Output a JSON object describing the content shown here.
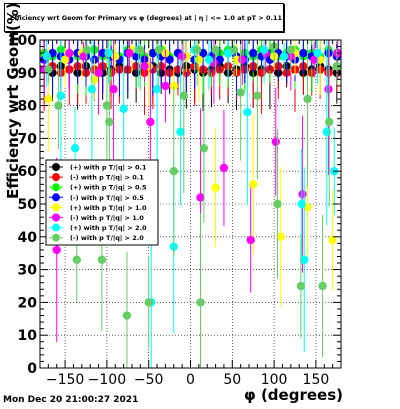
{
  "title": "Efficiency wrt Geom for Primary vs φ (degrees) at | η | <= 1.0 at pT > 0.11",
  "datestamp": "Mon Dec 20 21:00:27 2021",
  "chart_data": {
    "type": "scatter",
    "xlabel": "φ (degrees)",
    "ylabel": "Efficiency wrt Geom(%)",
    "xlim": [
      -180,
      180
    ],
    "ylim": [
      0,
      100
    ],
    "xticks": [
      -150,
      -100,
      -50,
      0,
      50,
      100,
      150
    ],
    "yticks": [
      0,
      10,
      20,
      30,
      40,
      50,
      60,
      70,
      80,
      90,
      100
    ],
    "grid": true,
    "legend_position": "left-middle",
    "series": [
      {
        "name": "(+) with p T/|q| > 0.1",
        "color": "#000000",
        "points": [
          [
            -175,
            91
          ],
          [
            -165,
            90
          ],
          [
            -155,
            92
          ],
          [
            -145,
            91
          ],
          [
            -135,
            90
          ],
          [
            -125,
            92
          ],
          [
            -115,
            91
          ],
          [
            -105,
            90
          ],
          [
            -95,
            91
          ],
          [
            -85,
            92
          ],
          [
            -75,
            91
          ],
          [
            -65,
            90
          ],
          [
            -55,
            91
          ],
          [
            -45,
            92
          ],
          [
            -35,
            90
          ],
          [
            -25,
            91
          ],
          [
            -15,
            90
          ],
          [
            -5,
            92
          ],
          [
            5,
            91
          ],
          [
            15,
            90
          ],
          [
            25,
            91
          ],
          [
            35,
            92
          ],
          [
            45,
            90
          ],
          [
            55,
            91
          ],
          [
            65,
            92
          ],
          [
            75,
            90
          ],
          [
            85,
            91
          ],
          [
            95,
            91
          ],
          [
            105,
            90
          ],
          [
            115,
            92
          ],
          [
            125,
            91
          ],
          [
            135,
            90
          ],
          [
            145,
            91
          ],
          [
            155,
            92
          ],
          [
            165,
            91
          ],
          [
            175,
            90
          ]
        ]
      },
      {
        "name": "(-) with p T/|q| > 0.1",
        "color": "#ff0000",
        "points": [
          [
            -175,
            91
          ],
          [
            -165,
            92
          ],
          [
            -155,
            90
          ],
          [
            -145,
            91
          ],
          [
            -135,
            92
          ],
          [
            -125,
            90
          ],
          [
            -115,
            91
          ],
          [
            -105,
            92
          ],
          [
            -95,
            90
          ],
          [
            -85,
            91
          ],
          [
            -75,
            91
          ],
          [
            -65,
            92
          ],
          [
            -55,
            90
          ],
          [
            -45,
            91
          ],
          [
            -35,
            92
          ],
          [
            -25,
            90
          ],
          [
            -15,
            91
          ],
          [
            -5,
            90
          ],
          [
            5,
            92
          ],
          [
            15,
            91
          ],
          [
            25,
            90
          ],
          [
            35,
            91
          ],
          [
            45,
            92
          ],
          [
            55,
            90
          ],
          [
            65,
            91
          ],
          [
            75,
            92
          ],
          [
            85,
            90
          ],
          [
            95,
            91
          ],
          [
            105,
            92
          ],
          [
            115,
            90
          ],
          [
            125,
            91
          ],
          [
            135,
            92
          ],
          [
            145,
            90
          ],
          [
            155,
            91
          ],
          [
            165,
            90
          ],
          [
            175,
            92
          ]
        ]
      },
      {
        "name": "(+) with p T/|q| > 0.5",
        "color": "#00ff00",
        "points": [
          [
            -175,
            96
          ],
          [
            -165,
            95
          ],
          [
            -155,
            97
          ],
          [
            -145,
            96
          ],
          [
            -135,
            95
          ],
          [
            -125,
            96
          ],
          [
            -115,
            97
          ],
          [
            -105,
            95
          ],
          [
            -95,
            96
          ],
          [
            -85,
            95
          ],
          [
            -75,
            97
          ],
          [
            -65,
            96
          ],
          [
            -55,
            95
          ],
          [
            -45,
            96
          ],
          [
            -35,
            97
          ],
          [
            -25,
            95
          ],
          [
            -15,
            96
          ],
          [
            -5,
            95
          ],
          [
            5,
            97
          ],
          [
            15,
            96
          ],
          [
            25,
            95
          ],
          [
            35,
            96
          ],
          [
            45,
            97
          ],
          [
            55,
            95
          ],
          [
            65,
            96
          ],
          [
            75,
            95
          ],
          [
            85,
            97
          ],
          [
            95,
            96
          ],
          [
            105,
            95
          ],
          [
            115,
            96
          ],
          [
            125,
            97
          ],
          [
            135,
            95
          ],
          [
            145,
            96
          ],
          [
            155,
            95
          ],
          [
            165,
            97
          ],
          [
            175,
            96
          ]
        ]
      },
      {
        "name": "(-) with p T/|q| > 0.5",
        "color": "#0000ff",
        "points": [
          [
            -175,
            94
          ],
          [
            -165,
            96
          ],
          [
            -155,
            95
          ],
          [
            -145,
            94
          ],
          [
            -135,
            96
          ],
          [
            -125,
            95
          ],
          [
            -115,
            94
          ],
          [
            -105,
            96
          ],
          [
            -95,
            95
          ],
          [
            -85,
            94
          ],
          [
            -75,
            96
          ],
          [
            -65,
            95
          ],
          [
            -55,
            94
          ],
          [
            -45,
            96
          ],
          [
            -35,
            95
          ],
          [
            -25,
            94
          ],
          [
            -15,
            96
          ],
          [
            -5,
            95
          ],
          [
            5,
            94
          ],
          [
            15,
            96
          ],
          [
            25,
            95
          ],
          [
            35,
            94
          ],
          [
            45,
            96
          ],
          [
            55,
            95
          ],
          [
            65,
            94
          ],
          [
            75,
            96
          ],
          [
            85,
            95
          ],
          [
            95,
            94
          ],
          [
            105,
            96
          ],
          [
            115,
            95
          ],
          [
            125,
            94
          ],
          [
            135,
            96
          ],
          [
            145,
            95
          ],
          [
            155,
            94
          ],
          [
            165,
            96
          ],
          [
            175,
            95
          ]
        ]
      },
      {
        "name": "(+) with p T/|q| > 1.0",
        "color": "#ffff00",
        "points": [
          [
            -170,
            82
          ],
          [
            -150,
            94
          ],
          [
            -130,
            96
          ],
          [
            -115,
            88
          ],
          [
            -90,
            95
          ],
          [
            -70,
            97
          ],
          [
            -50,
            92
          ],
          [
            -30,
            96
          ],
          [
            -20,
            86
          ],
          [
            -5,
            95
          ],
          [
            10,
            94
          ],
          [
            30,
            55
          ],
          [
            55,
            94
          ],
          [
            75,
            56
          ],
          [
            100,
            95
          ],
          [
            108,
            40
          ],
          [
            125,
            96
          ],
          [
            140,
            49
          ],
          [
            155,
            94
          ],
          [
            170,
            39
          ]
        ]
      },
      {
        "name": "(-) with p T/|q| > 1.0",
        "color": "#ff00ff",
        "points": [
          [
            -175,
            91
          ],
          [
            -160,
            36
          ],
          [
            -145,
            96
          ],
          [
            -128,
            95
          ],
          [
            -110,
            90
          ],
          [
            -92,
            85
          ],
          [
            -73,
            96
          ],
          [
            -55,
            92
          ],
          [
            -48,
            75
          ],
          [
            -30,
            86
          ],
          [
            -10,
            95
          ],
          [
            12,
            52
          ],
          [
            28,
            93
          ],
          [
            40,
            61
          ],
          [
            62,
            94
          ],
          [
            72,
            39
          ],
          [
            90,
            96
          ],
          [
            102,
            69
          ],
          [
            120,
            95
          ],
          [
            134,
            53
          ],
          [
            148,
            94
          ],
          [
            165,
            85
          ],
          [
            176,
            96
          ]
        ]
      },
      {
        "name": "(+) with p T/|q| > 2.0",
        "color": "#00ffff",
        "points": [
          [
            -172,
            95
          ],
          [
            -155,
            83
          ],
          [
            -138,
            67
          ],
          [
            -118,
            85
          ],
          [
            -98,
            96
          ],
          [
            -80,
            79
          ],
          [
            -62,
            97
          ],
          [
            -47,
            20
          ],
          [
            -40,
            85
          ],
          [
            -20,
            37
          ],
          [
            -12,
            72
          ],
          [
            5,
            97
          ],
          [
            22,
            94
          ],
          [
            45,
            96
          ],
          [
            68,
            78
          ],
          [
            88,
            97
          ],
          [
            112,
            95
          ],
          [
            133,
            50
          ],
          [
            136,
            33
          ],
          [
            152,
            96
          ],
          [
            163,
            72
          ],
          [
            172,
            60
          ]
        ]
      },
      {
        "name": "(-) with p T/|q| > 2.0",
        "color": "#66cc66",
        "points": [
          [
            -170,
            91
          ],
          [
            -158,
            80
          ],
          [
            -136,
            33
          ],
          [
            -124,
            97
          ],
          [
            -106,
            33
          ],
          [
            -100,
            80
          ],
          [
            -97,
            75
          ],
          [
            -76,
            16
          ],
          [
            -60,
            97
          ],
          [
            -50,
            20
          ],
          [
            -38,
            97
          ],
          [
            -20,
            60
          ],
          [
            -8,
            83
          ],
          [
            8,
            97
          ],
          [
            12,
            20
          ],
          [
            16,
            67
          ],
          [
            30,
            97
          ],
          [
            52,
            97
          ],
          [
            60,
            84
          ],
          [
            80,
            83
          ],
          [
            100,
            98
          ],
          [
            104,
            50
          ],
          [
            120,
            97
          ],
          [
            132,
            25
          ],
          [
            140,
            82
          ],
          [
            158,
            25
          ],
          [
            166,
            75
          ],
          [
            175,
            92
          ]
        ]
      }
    ]
  }
}
